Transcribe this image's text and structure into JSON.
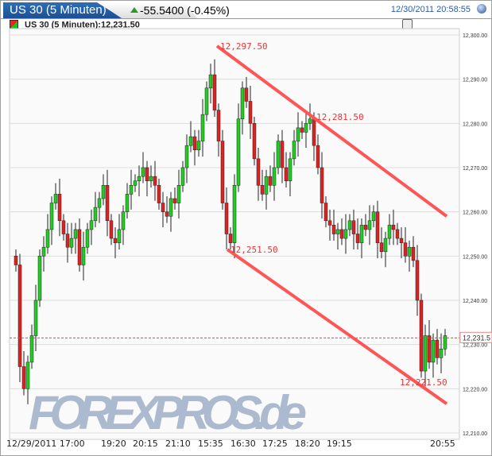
{
  "header": {
    "title": "US 30 (5 Minuten)",
    "change": "-55.5400 (-0.45%)",
    "timestamp": "12/30/2011 20:58:55"
  },
  "legend": {
    "label": "US 30 (5 Minuten):12,231.50"
  },
  "watermark": "FOREXPROS.de",
  "chart_data": {
    "type": "candlestick",
    "ylim": [
      12210,
      12300
    ],
    "yticks": [
      "12,300.00",
      "12,290.00",
      "12,280.00",
      "12,270.00",
      "12,260.00",
      "12,250.00",
      "12,240.00",
      "12,230.00",
      "12,220.00",
      "12,210.00"
    ],
    "xticks": [
      "12/29/2011 17:00",
      "19:20",
      "20:15",
      "21:10",
      "15:35",
      "16:30",
      "17:25",
      "18:20",
      "19:15",
      "20:55"
    ],
    "grid": true,
    "last_price": 12231.5,
    "last_price_label": "12,231.5",
    "colors": {
      "up": "#22cc22",
      "down": "#dd2222",
      "trend": "#ff5555"
    },
    "closes": [
      12248,
      12225,
      12220,
      12226,
      12232,
      12240,
      12250,
      12252,
      12256,
      12262,
      12264,
      12258,
      12255,
      12252,
      12254,
      12256,
      12248,
      12252,
      12256,
      12258,
      12261,
      12263,
      12266,
      12258,
      12254,
      12253,
      12256,
      12260,
      12264,
      12266,
      12267,
      12268,
      12270,
      12267,
      12268,
      12266,
      12262,
      12260,
      12259,
      12263,
      12262,
      12266,
      12270,
      12275,
      12277,
      12274,
      12276,
      12282,
      12288,
      12291,
      12283,
      12276,
      12262,
      12255,
      12253,
      12266,
      12281,
      12288,
      12285,
      12280,
      12272,
      12266,
      12264,
      12268,
      12266,
      12270,
      12276,
      12270,
      12267,
      12272,
      12276,
      12279,
      12278,
      12280,
      12281,
      12275,
      12270,
      12262,
      12258,
      12257,
      12255,
      12256,
      12254,
      12256,
      12258,
      12255,
      12253,
      12257,
      12256,
      12258,
      12260,
      12253,
      12251,
      12254,
      12257,
      12256,
      12254,
      12253,
      12250,
      12252,
      12249,
      12240,
      12224,
      12232,
      12226,
      12231,
      12227,
      12229,
      12232
    ],
    "annotations": [
      {
        "text": "12,297.50",
        "value": 12297.5
      },
      {
        "text": "12,281.50",
        "value": 12281.5
      },
      {
        "text": "12,251.50",
        "value": 12251.5
      },
      {
        "text": "12,221.50",
        "value": 12221.5
      }
    ],
    "trendlines": [
      {
        "from": 12297.5,
        "to": 12259
      },
      {
        "from": 12251.5,
        "to": 12216.6
      }
    ]
  }
}
